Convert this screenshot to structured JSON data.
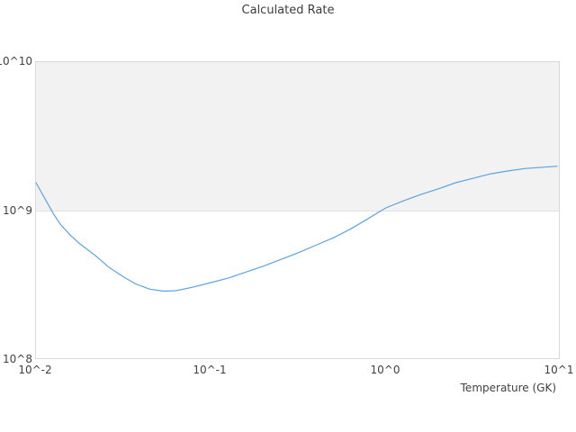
{
  "chart_data": {
    "type": "line",
    "title": "Calculated Rate",
    "xlabel": "Temperature (GK)",
    "ylabel": "",
    "xscale": "log",
    "yscale": "log",
    "xlim": [
      0.01,
      10
    ],
    "ylim": [
      100000000.0,
      10000000000.0
    ],
    "grid": "off",
    "legend": "none",
    "xtick_labels": [
      "10^-2",
      "10^-1",
      "10^0",
      "10^1"
    ],
    "ytick_labels": [
      "10^8",
      "10^9",
      "10^10"
    ],
    "shaded_band": {
      "ymin": 1000000000.0,
      "ymax": 10000000000.0,
      "color": "#f2f2f2"
    },
    "line_color": "#5ba3e0",
    "series": [
      {
        "name": "calculated-rate",
        "x": [
          0.01,
          0.0126,
          0.0138,
          0.0158,
          0.0178,
          0.0219,
          0.0263,
          0.0324,
          0.0372,
          0.0447,
          0.0537,
          0.0631,
          0.0794,
          0.1,
          0.126,
          0.158,
          0.2,
          0.251,
          0.316,
          0.398,
          0.501,
          0.631,
          0.794,
          1.0,
          1.26,
          1.58,
          2.0,
          2.51,
          3.16,
          3.98,
          5.01,
          6.31,
          7.94,
          9.55
        ],
        "y": [
          1550000000.0,
          955000000.0,
          813000000.0,
          684000000.0,
          603000000.0,
          501000000.0,
          417000000.0,
          355000000.0,
          324000000.0,
          299000000.0,
          290000000.0,
          292000000.0,
          309000000.0,
          331000000.0,
          355000000.0,
          389000000.0,
          427000000.0,
          473000000.0,
          525000000.0,
          589000000.0,
          661000000.0,
          759000000.0,
          891000000.0,
          1050000000.0,
          1170000000.0,
          1290000000.0,
          1410000000.0,
          1550000000.0,
          1660000000.0,
          1780000000.0,
          1860000000.0,
          1930000000.0,
          1970000000.0,
          2000000000.0
        ]
      }
    ]
  }
}
